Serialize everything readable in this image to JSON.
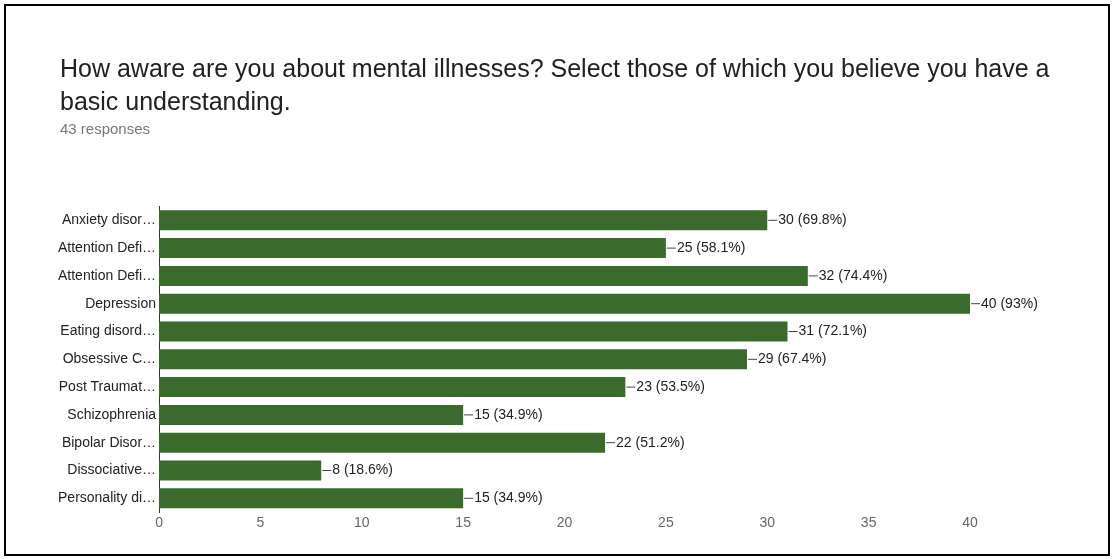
{
  "chart_data": {
    "type": "bar",
    "orientation": "horizontal",
    "title": "How aware are you about mental illnesses? Select those of which you believe you have a basic understanding.",
    "subtitle": "43 responses",
    "categories": [
      "Anxiety disor…",
      "Attention Defi…",
      "Attention Defi…",
      "Depression",
      "Eating disord…",
      "Obsessive C…",
      "Post Traumat…",
      "Schizophrenia",
      "Bipolar Disor…",
      "Dissociative…",
      "Personality di…"
    ],
    "values": [
      30,
      25,
      32,
      40,
      31,
      29,
      23,
      15,
      22,
      8,
      15
    ],
    "value_labels": [
      "30 (69.8%)",
      "25 (58.1%)",
      "32 (74.4%)",
      "40 (93%)",
      "31 (72.1%)",
      "29 (67.4%)",
      "23 (53.5%)",
      "15 (34.9%)",
      "22 (51.2%)",
      "8 (18.6%)",
      "15 (34.9%)"
    ],
    "color": "#3b6b2c",
    "xlim": [
      0,
      40
    ],
    "xticks": [
      0,
      5,
      10,
      15,
      20,
      25,
      30,
      35,
      40
    ],
    "grid": false,
    "legend": false
  }
}
